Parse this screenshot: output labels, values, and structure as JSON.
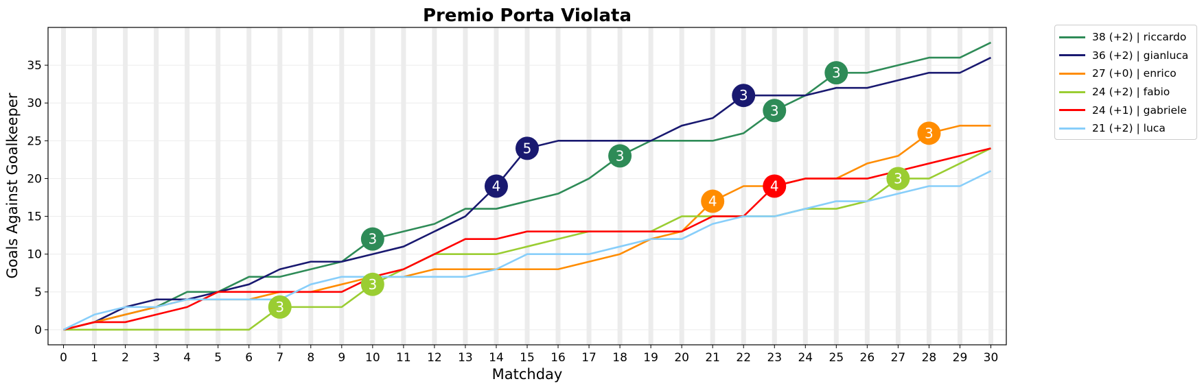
{
  "chart_data": {
    "type": "line",
    "title": "Premio Porta Violata",
    "xlabel": "Matchday",
    "ylabel": "Goals Against Goalkeeper",
    "xlim": [
      -0.5,
      30.5
    ],
    "ylim": [
      -2,
      40
    ],
    "x": [
      0,
      1,
      2,
      3,
      4,
      5,
      6,
      7,
      8,
      9,
      10,
      11,
      12,
      13,
      14,
      15,
      16,
      17,
      18,
      19,
      20,
      21,
      22,
      23,
      24,
      25,
      26,
      27,
      28,
      29,
      30
    ],
    "x_ticks": [
      0,
      1,
      2,
      3,
      4,
      5,
      6,
      7,
      8,
      9,
      10,
      11,
      12,
      13,
      14,
      15,
      16,
      17,
      18,
      19,
      20,
      21,
      22,
      23,
      24,
      25,
      26,
      27,
      28,
      29,
      30
    ],
    "y_ticks": [
      0,
      5,
      10,
      15,
      20,
      25,
      30,
      35
    ],
    "grid": true,
    "legend_position": "outside-top-right",
    "series": [
      {
        "name": "riccardo",
        "legend": "38 (+2) | riccardo",
        "color": "#2e8b57",
        "values": [
          0,
          1,
          2,
          3,
          5,
          5,
          7,
          7,
          8,
          9,
          12,
          13,
          14,
          16,
          16,
          17,
          18,
          20,
          23,
          25,
          25,
          25,
          26,
          29,
          31,
          34,
          34,
          35,
          36,
          36,
          38
        ],
        "markers": [
          {
            "x": 10,
            "label": "3"
          },
          {
            "x": 18,
            "label": "3"
          },
          {
            "x": 23,
            "label": "3"
          },
          {
            "x": 25,
            "label": "3"
          }
        ]
      },
      {
        "name": "gianluca",
        "legend": "36 (+2) | gianluca",
        "color": "#191970",
        "values": [
          0,
          1,
          3,
          4,
          4,
          5,
          6,
          8,
          9,
          9,
          10,
          11,
          13,
          15,
          19,
          24,
          25,
          25,
          25,
          25,
          27,
          28,
          31,
          31,
          31,
          32,
          32,
          33,
          34,
          34,
          36
        ],
        "markers": [
          {
            "x": 14,
            "label": "4"
          },
          {
            "x": 15,
            "label": "5"
          },
          {
            "x": 22,
            "label": "3"
          }
        ]
      },
      {
        "name": "enrico",
        "legend": "27 (+0) | enrico",
        "color": "#ff8c00",
        "values": [
          0,
          1,
          2,
          3,
          4,
          4,
          4,
          5,
          5,
          6,
          7,
          7,
          8,
          8,
          8,
          8,
          8,
          9,
          10,
          12,
          13,
          17,
          19,
          19,
          20,
          20,
          22,
          23,
          26,
          27,
          27
        ],
        "markers": [
          {
            "x": 21,
            "label": "4"
          },
          {
            "x": 28,
            "label": "3"
          }
        ]
      },
      {
        "name": "fabio",
        "legend": "24 (+2) | fabio",
        "color": "#9acd32",
        "values": [
          0,
          0,
          0,
          0,
          0,
          0,
          0,
          3,
          3,
          3,
          6,
          8,
          10,
          10,
          10,
          11,
          12,
          13,
          13,
          13,
          15,
          15,
          15,
          15,
          16,
          16,
          17,
          20,
          20,
          22,
          24
        ],
        "markers": [
          {
            "x": 7,
            "label": "3"
          },
          {
            "x": 10,
            "label": "3"
          },
          {
            "x": 27,
            "label": "3"
          }
        ]
      },
      {
        "name": "gabriele",
        "legend": "24 (+1) | gabriele",
        "color": "#ff0000",
        "values": [
          0,
          1,
          1,
          2,
          3,
          5,
          5,
          5,
          5,
          5,
          7,
          8,
          10,
          12,
          12,
          13,
          13,
          13,
          13,
          13,
          13,
          15,
          15,
          19,
          20,
          20,
          20,
          21,
          22,
          23,
          24
        ],
        "markers": [
          {
            "x": 23,
            "label": "4"
          }
        ]
      },
      {
        "name": "luca",
        "legend": "21 (+2) | luca",
        "color": "#87cefa",
        "values": [
          0,
          2,
          3,
          3,
          4,
          4,
          4,
          4,
          6,
          7,
          7,
          7,
          7,
          7,
          8,
          10,
          10,
          10,
          11,
          12,
          12,
          14,
          15,
          15,
          16,
          17,
          17,
          18,
          19,
          19,
          21
        ],
        "markers": []
      }
    ]
  }
}
